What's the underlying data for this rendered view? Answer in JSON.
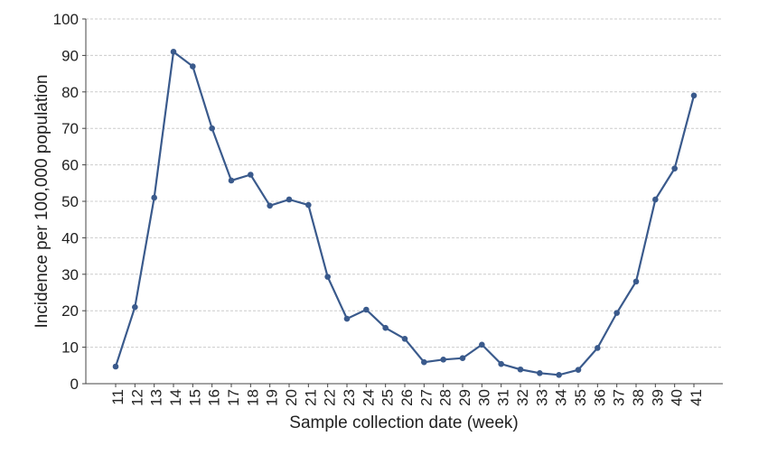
{
  "chart_data": {
    "type": "line",
    "x_label": "Sample collection date (week)",
    "y_label": "Incidence per 100,000 population",
    "categories": [
      "11",
      "12",
      "13",
      "14",
      "15",
      "16",
      "17",
      "18",
      "19",
      "20",
      "21",
      "22",
      "23",
      "24",
      "25",
      "26",
      "27",
      "28",
      "29",
      "30",
      "31",
      "32",
      "33",
      "34",
      "35",
      "36",
      "37",
      "38",
      "39",
      "40",
      "41"
    ],
    "series": [
      {
        "name": "Incidence",
        "color": "#3a5a8c",
        "values": [
          4.7,
          21,
          51,
          91,
          87,
          70,
          55.7,
          57.3,
          48.8,
          50.5,
          49,
          29.3,
          17.8,
          20.3,
          15.3,
          12.3,
          5.9,
          6.6,
          7,
          10.7,
          5.4,
          3.9,
          2.9,
          2.4,
          3.8,
          9.8,
          19.4,
          28,
          50.5,
          59,
          79
        ]
      }
    ],
    "ylim": [
      0,
      100
    ],
    "yticks": [
      0,
      10,
      20,
      30,
      40,
      50,
      60,
      70,
      80,
      90,
      100
    ],
    "grid": true
  }
}
